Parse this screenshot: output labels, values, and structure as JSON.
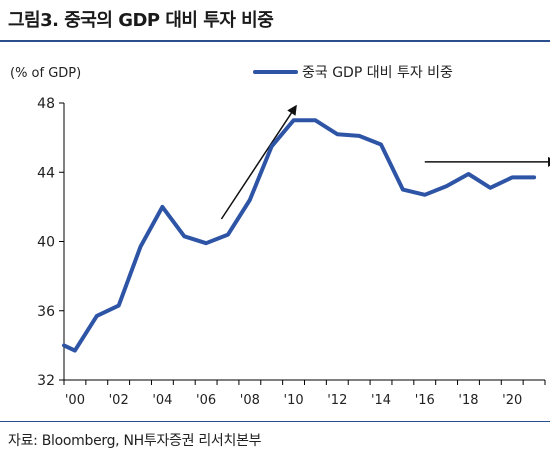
{
  "figure_title": "그림3. 중국의 GDP 대비 투자 비중",
  "source": "자료: Bloomberg, NH투자증권 리서치본부",
  "colors": {
    "series": "#2e54a6",
    "rule": "#2b4f8e",
    "arrow": "#111111",
    "axis": "#000000"
  },
  "chart_data": {
    "type": "line",
    "title": "",
    "xlabel": "",
    "ylabel": "(% of GDP)",
    "ylim": [
      32,
      48
    ],
    "xlim": [
      2000,
      2022
    ],
    "yticks": [
      32,
      36,
      40,
      44,
      48
    ],
    "xticks": [
      {
        "x": 2000,
        "label": "'00"
      },
      {
        "x": 2002,
        "label": "'02"
      },
      {
        "x": 2004,
        "label": "'04"
      },
      {
        "x": 2006,
        "label": "'06"
      },
      {
        "x": 2008,
        "label": "'08"
      },
      {
        "x": 2010,
        "label": "'10"
      },
      {
        "x": 2012,
        "label": "'12"
      },
      {
        "x": 2014,
        "label": "'14"
      },
      {
        "x": 2016,
        "label": "'16"
      },
      {
        "x": 2018,
        "label": "'18"
      },
      {
        "x": 2020,
        "label": "'20"
      }
    ],
    "legend": "top-right",
    "grid": false,
    "series": [
      {
        "name": "중국 GDP 대비 투자 비중",
        "x": [
          2000,
          2000.5,
          2001.5,
          2002.5,
          2003.5,
          2004.5,
          2005.5,
          2006.5,
          2007.5,
          2008.5,
          2009.5,
          2010.5,
          2011.5,
          2012.5,
          2013.5,
          2014.5,
          2015.5,
          2016.5,
          2017.5,
          2018.5,
          2019.5,
          2020.5,
          2021.5
        ],
        "values": [
          34.0,
          33.7,
          35.7,
          36.3,
          39.7,
          42.0,
          40.3,
          39.9,
          40.4,
          42.4,
          45.5,
          47.0,
          47.0,
          46.2,
          46.1,
          45.6,
          43.0,
          42.7,
          43.2,
          43.9,
          43.1,
          43.7,
          43.7
        ]
      }
    ],
    "annotations": [
      {
        "type": "arrow",
        "from": [
          2007.2,
          41.3
        ],
        "to": [
          2010.6,
          47.8
        ]
      },
      {
        "type": "arrow",
        "from": [
          2016.5,
          44.6
        ],
        "to": [
          2022.5,
          44.6
        ]
      }
    ]
  }
}
